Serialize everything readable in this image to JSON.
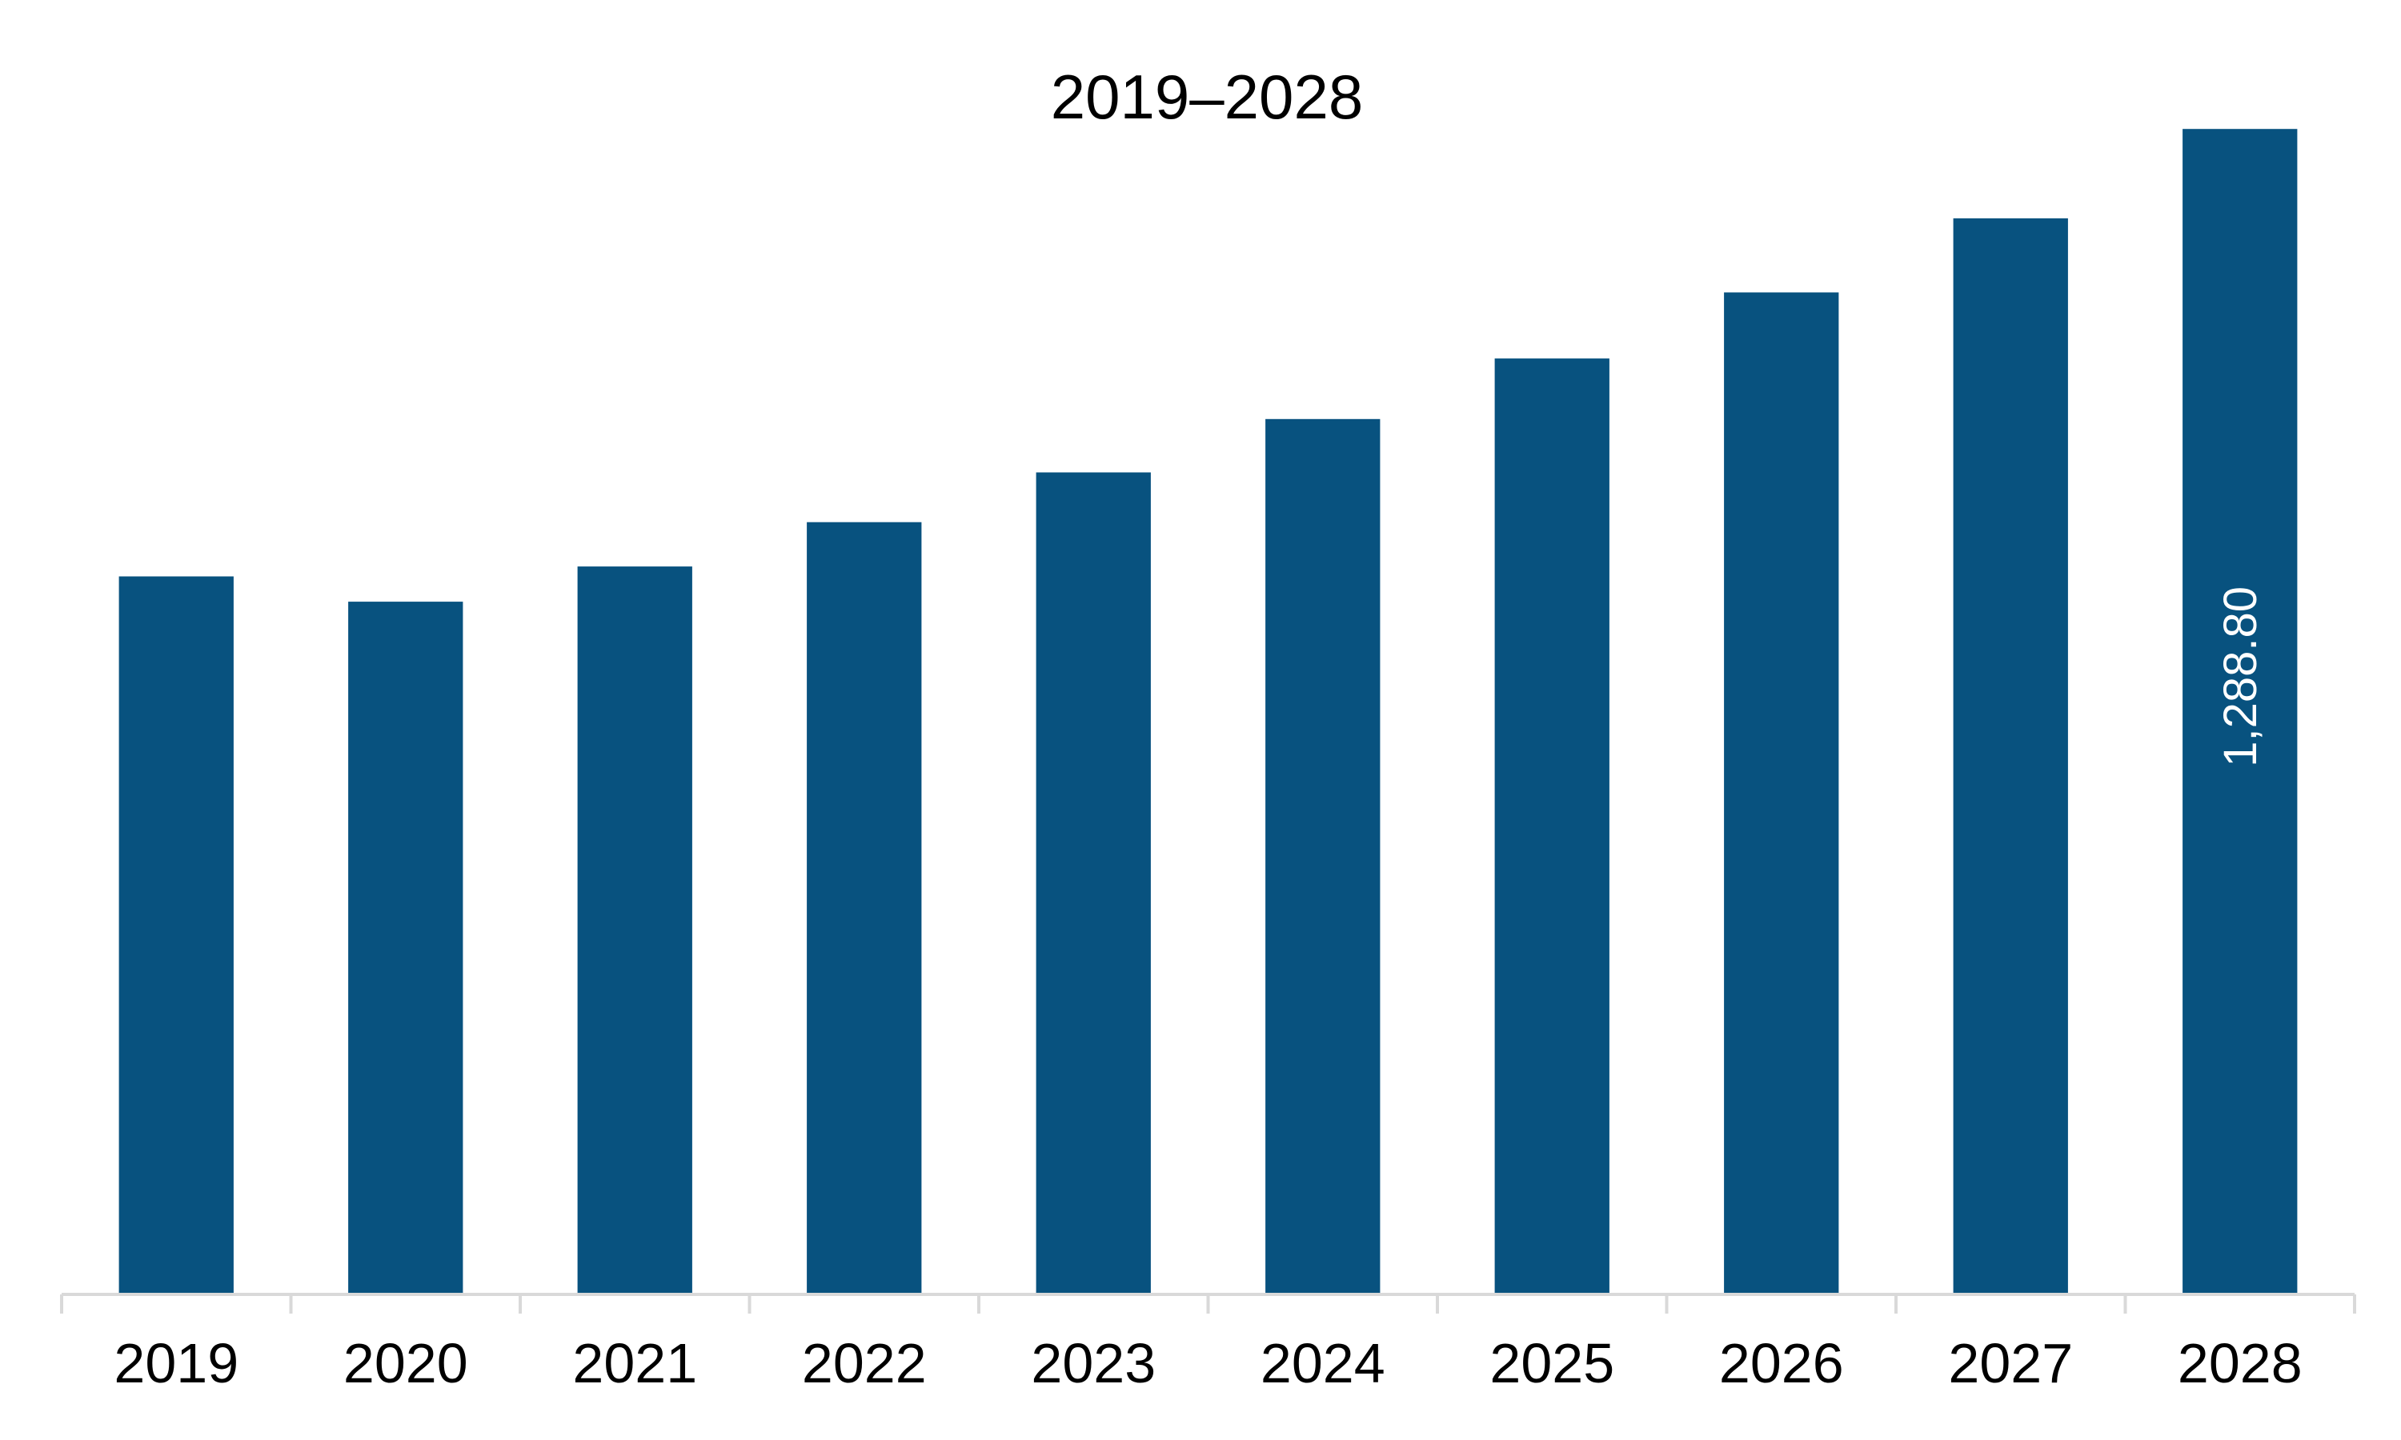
{
  "chart_data": {
    "type": "bar",
    "title": "2019–2028",
    "xlabel": "",
    "ylabel": "",
    "categories": [
      "2019",
      "2020",
      "2021",
      "2022",
      "2023",
      "2024",
      "2025",
      "2026",
      "2027",
      "2028"
    ],
    "values": [
      794,
      766,
      805,
      854,
      909,
      968,
      1035,
      1108,
      1190,
      1288.8
    ],
    "data_labels": [
      "",
      "",
      "",
      "",
      "",
      "",
      "",
      "",
      "",
      "1,288.80"
    ],
    "ylim": [
      0,
      1350
    ],
    "grid": false,
    "legend": "none",
    "bar_color": "#08527f",
    "axis_color": "#d9d9d9"
  }
}
